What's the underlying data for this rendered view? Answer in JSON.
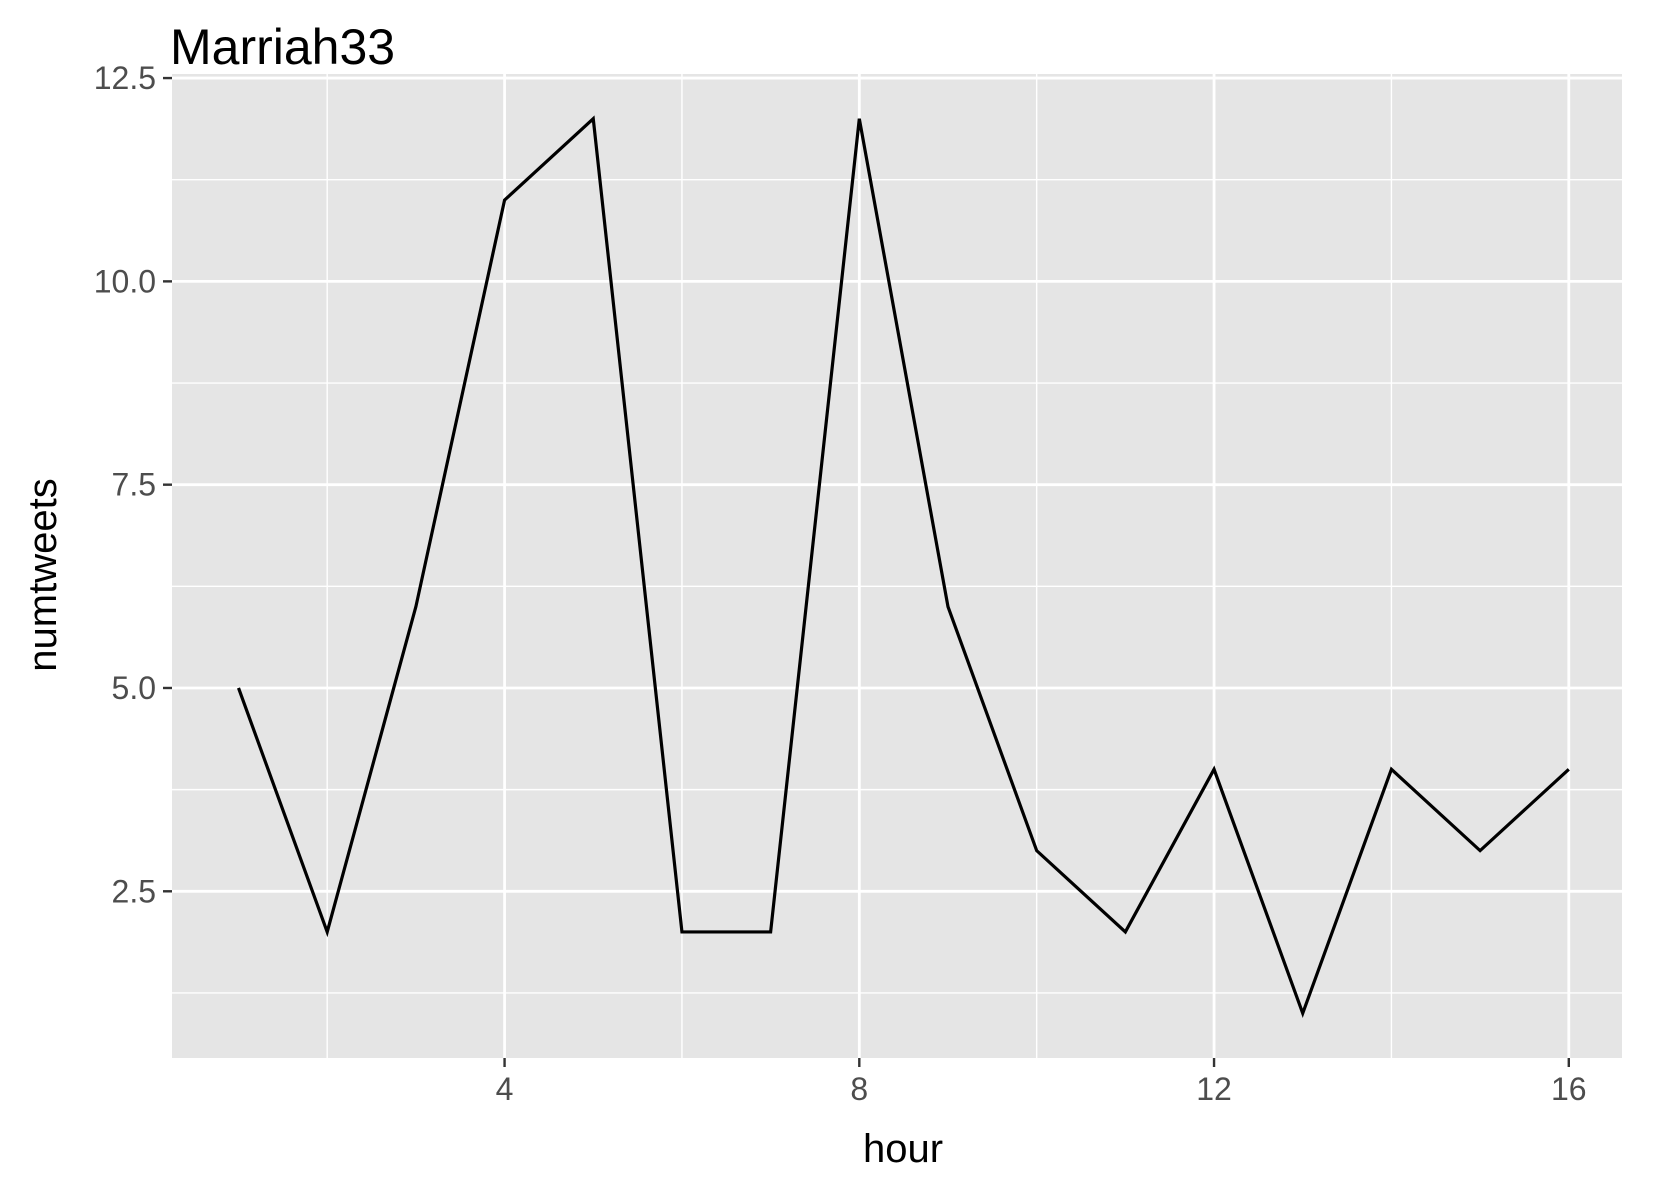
{
  "chart_data": {
    "type": "line",
    "title": "Marriah33",
    "xlabel": "hour",
    "ylabel": "numtweets",
    "x": [
      1,
      2,
      3,
      4,
      5,
      6,
      7,
      8,
      9,
      10,
      11,
      12,
      13,
      14,
      15,
      16
    ],
    "series": [
      {
        "values": [
          5,
          2,
          6,
          11,
          12,
          2,
          2,
          12,
          6,
          3,
          2,
          4,
          1,
          4,
          3,
          4
        ]
      }
    ],
    "xlim": [
      0.25,
      16.6
    ],
    "ylim": [
      0.45,
      12.55
    ],
    "x_ticks": [
      4,
      8,
      12,
      16
    ],
    "x_tick_labels": [
      "4",
      "8",
      "12",
      "16"
    ],
    "y_ticks": [
      2.5,
      5.0,
      7.5,
      10.0,
      12.5
    ],
    "y_tick_labels": [
      "2.5",
      "5.0",
      "7.5",
      "10.0",
      "12.5"
    ],
    "x_minor_ticks": [
      2,
      6,
      10,
      14
    ],
    "y_minor_ticks": [
      1.25,
      3.75,
      6.25,
      8.75,
      11.25
    ],
    "grid": true,
    "legend": "none",
    "colors": {
      "panel": "#e5e5e5",
      "grid": "#ffffff",
      "line": "#000000",
      "tick": "#333333"
    }
  }
}
